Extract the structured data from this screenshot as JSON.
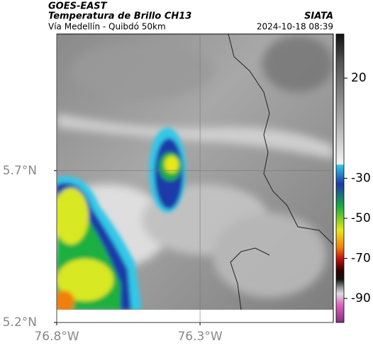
{
  "header": {
    "source": "GOES-EAST",
    "title": "Temperatura de Brillo CH13",
    "subtitle": "Vía Medellín - Quibdó 50km",
    "agency": "SIATA",
    "datetime": "2024-10-18 08:39"
  },
  "map": {
    "latlim": [
      5.2,
      6.15
    ],
    "lonlim": [
      -76.8,
      -75.835
    ],
    "latticks": [
      {
        "value": 5.7,
        "label": "5.7°N"
      },
      {
        "value": 5.2,
        "label": "5.2°N"
      }
    ],
    "lonticks": [
      {
        "value": -76.8,
        "label": "76.8°W"
      },
      {
        "value": -76.3,
        "label": "76.3°W"
      }
    ],
    "grid": true
  },
  "colorbar": {
    "lim": [
      -102,
      42
    ],
    "ticks": [
      20,
      -30,
      -50,
      -70,
      -90
    ]
  }
}
